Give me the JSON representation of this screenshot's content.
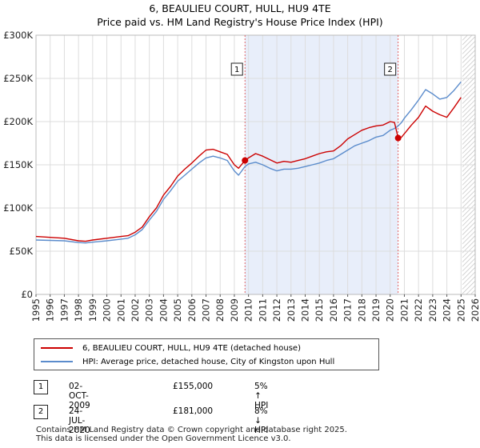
{
  "title": "6, BEAULIEU COURT, HULL, HU9 4TE",
  "subtitle": "Price paid vs. HM Land Registry's House Price Index (HPI)",
  "chart_data": {
    "type": "line",
    "title": "6, BEAULIEU COURT, HULL, HU9 4TE",
    "subtitle": "Price paid vs. HM Land Registry's House Price Index (HPI)",
    "xlabel": "",
    "ylabel": "",
    "xlim": [
      1995,
      2026
    ],
    "ylim": [
      0,
      300000
    ],
    "grid": true,
    "y_ticks": [
      0,
      50000,
      100000,
      150000,
      200000,
      250000,
      300000
    ],
    "y_tick_labels": [
      "£0",
      "£50K",
      "£100K",
      "£150K",
      "£200K",
      "£250K",
      "£300K"
    ],
    "x_ticks": [
      1995,
      1996,
      1997,
      1998,
      1999,
      2000,
      2001,
      2002,
      2003,
      2004,
      2005,
      2006,
      2007,
      2008,
      2009,
      2010,
      2011,
      2012,
      2013,
      2014,
      2015,
      2016,
      2017,
      2018,
      2019,
      2020,
      2021,
      2022,
      2023,
      2024,
      2025,
      2026
    ],
    "shaded_period": [
      2009.75,
      2020.56
    ],
    "forecast_start": 2025.1,
    "series": [
      {
        "name": "6, BEAULIEU COURT, HULL, HU9 4TE (detached house)",
        "color": "#cc0000",
        "x": [
          1995,
          1996,
          1997,
          1998,
          1998.5,
          1999,
          2000,
          2001,
          2001.5,
          2002,
          2002.5,
          2003,
          2003.5,
          2004,
          2004.5,
          2005,
          2005.5,
          2006,
          2006.5,
          2007,
          2007.5,
          2008,
          2008.5,
          2009,
          2009.3,
          2009.75,
          2010,
          2010.5,
          2011,
          2011.5,
          2012,
          2012.5,
          2013,
          2013.5,
          2014,
          2014.5,
          2015,
          2015.5,
          2016,
          2016.5,
          2017,
          2017.5,
          2018,
          2018.5,
          2019,
          2019.5,
          2020,
          2020.3,
          2020.56,
          2020.8,
          2021,
          2021.5,
          2022,
          2022.5,
          2023,
          2023.5,
          2024,
          2024.5,
          2025
        ],
        "values": [
          67000,
          66000,
          65000,
          62000,
          61500,
          63000,
          65000,
          67000,
          68000,
          72000,
          78000,
          90000,
          100000,
          115000,
          125000,
          137000,
          145000,
          152000,
          160000,
          167000,
          168000,
          165000,
          162000,
          150000,
          146000,
          155000,
          158000,
          163000,
          160000,
          156000,
          152000,
          154000,
          153000,
          155000,
          157000,
          160000,
          163000,
          165000,
          166000,
          172000,
          180000,
          185000,
          190000,
          193000,
          195000,
          196000,
          200000,
          199000,
          181000,
          182000,
          186000,
          196000,
          205000,
          218000,
          212000,
          208000,
          205000,
          216000,
          228000
        ]
      },
      {
        "name": "HPI: Average price, detached house, City of Kingston upon Hull",
        "color": "#5b8ccc",
        "x": [
          1995,
          1996,
          1997,
          1998,
          1998.5,
          1999,
          2000,
          2001,
          2001.5,
          2002,
          2002.5,
          2003,
          2003.5,
          2004,
          2004.5,
          2005,
          2005.5,
          2006,
          2006.5,
          2007,
          2007.5,
          2008,
          2008.5,
          2009,
          2009.3,
          2009.75,
          2010,
          2010.5,
          2011,
          2011.5,
          2012,
          2012.5,
          2013,
          2013.5,
          2014,
          2014.5,
          2015,
          2015.5,
          2016,
          2016.5,
          2017,
          2017.5,
          2018,
          2018.5,
          2019,
          2019.5,
          2020,
          2020.3,
          2020.56,
          2020.8,
          2021,
          2021.5,
          2022,
          2022.5,
          2023,
          2023.5,
          2024,
          2024.5,
          2025
        ],
        "values": [
          63000,
          62500,
          62000,
          60000,
          59500,
          60500,
          62000,
          64000,
          65000,
          69000,
          75000,
          86000,
          96000,
          110000,
          120000,
          131000,
          138000,
          145000,
          152000,
          158000,
          160000,
          158000,
          155000,
          143000,
          138000,
          148000,
          151000,
          153000,
          150000,
          146000,
          143000,
          145000,
          145000,
          146000,
          148000,
          150000,
          152000,
          155000,
          157000,
          162000,
          167000,
          172000,
          175000,
          178000,
          182000,
          184000,
          190000,
          192000,
          195000,
          199000,
          204000,
          214000,
          225000,
          237000,
          232000,
          226000,
          228000,
          236000,
          246000
        ]
      }
    ],
    "markers": [
      {
        "label": "1",
        "x": 2009.75,
        "y": 155000
      },
      {
        "label": "2",
        "x": 2020.56,
        "y": 181000
      }
    ]
  },
  "legend": {
    "items": [
      {
        "label": "6, BEAULIEU COURT, HULL, HU9 4TE (detached house)",
        "color": "#cc0000"
      },
      {
        "label": "HPI: Average price, detached house, City of Kingston upon Hull",
        "color": "#5b8ccc"
      }
    ]
  },
  "annotations": [
    {
      "num": "1",
      "date": "02-OCT-2009",
      "price": "£155,000",
      "delta": "5% ↑ HPI"
    },
    {
      "num": "2",
      "date": "24-JUL-2020",
      "price": "£181,000",
      "delta": "8% ↓ HPI"
    }
  ],
  "footer": {
    "line1": "Contains HM Land Registry data © Crown copyright and database right 2025.",
    "line2": "This data is licensed under the Open Government Licence v3.0."
  }
}
